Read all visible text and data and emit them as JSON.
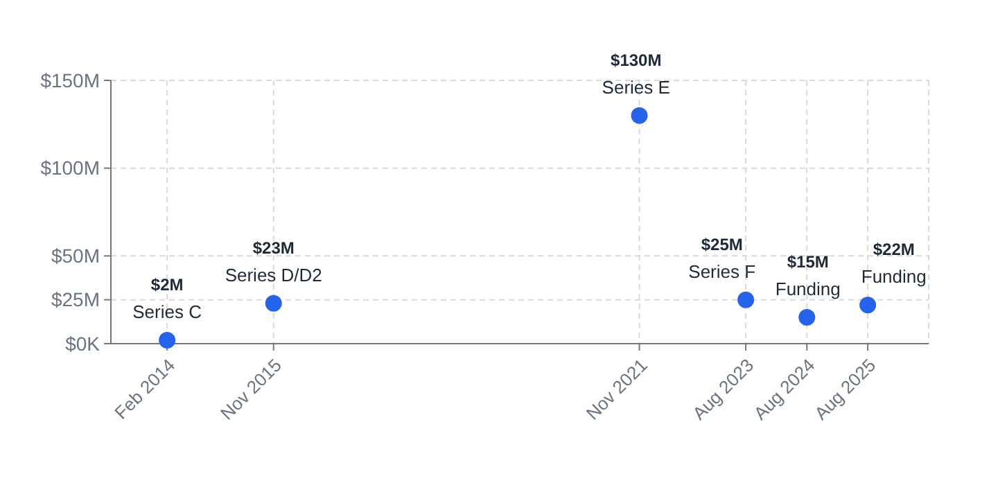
{
  "chart_data": {
    "type": "scatter",
    "x": [
      "2014-02",
      "2015-11",
      "2021-11",
      "2023-08",
      "2024-08",
      "2025-08"
    ],
    "values": [
      2,
      23,
      130,
      25,
      15,
      22
    ],
    "value_labels": [
      "$2M",
      "$23M",
      "$130M",
      "$25M",
      "$15M",
      "$22M"
    ],
    "color": "#2563eb",
    "marker": "circle",
    "grid": true,
    "xlim": [
      "2013-03",
      "2026-08"
    ],
    "xticks": [
      {
        "value": "2014-02",
        "label": "Feb 2014"
      },
      {
        "value": "2015-11",
        "label": "Nov 2015"
      },
      {
        "value": "2021-11",
        "label": "Nov 2021"
      },
      {
        "value": "2023-08",
        "label": "Aug 2023"
      },
      {
        "value": "2024-08",
        "label": "Aug 2024"
      },
      {
        "value": "2025-08",
        "label": "Aug 2025"
      }
    ],
    "ylim": [
      0,
      150
    ],
    "yticks": [
      {
        "value": 0,
        "label": "$0K"
      },
      {
        "value": 25,
        "label": "$25M"
      },
      {
        "value": 50,
        "label": "$50M"
      },
      {
        "value": 100,
        "label": "$100M"
      },
      {
        "value": 150,
        "label": "$150M"
      }
    ],
    "annotations": [
      {
        "text": "Series C",
        "x": "2014-02",
        "y": 2
      },
      {
        "text": "Series D/D2",
        "x": "2015-11",
        "y": 23
      },
      {
        "text": "Series E",
        "x": "2021-11",
        "y": 130
      },
      {
        "text": "Series F",
        "x": "2023-08",
        "y": 25
      },
      {
        "text": "Funding",
        "x": "2024-08",
        "y": 15
      },
      {
        "text": "Funding",
        "x": "2025-08",
        "y": 22
      }
    ]
  }
}
